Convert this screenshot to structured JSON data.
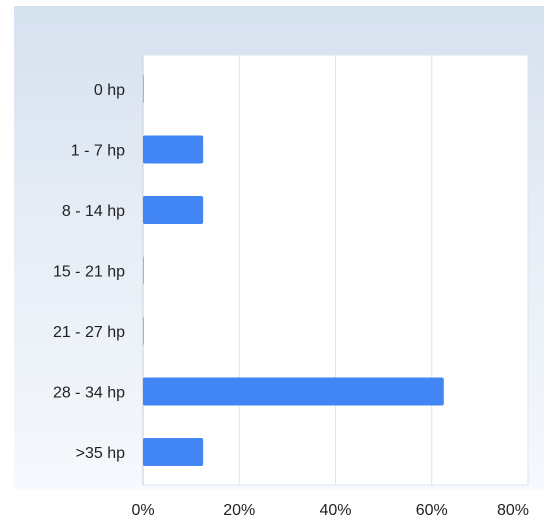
{
  "chart_data": {
    "type": "bar",
    "orientation": "horizontal",
    "categories": [
      "0 hp",
      "1 - 7 hp",
      "8 - 14 hp",
      "15 - 21 hp",
      "21 - 27 hp",
      "28 - 34 hp",
      ">35 hp"
    ],
    "series": [
      {
        "values": [
          0,
          12.5,
          12.5,
          0,
          0,
          62.5,
          12.5
        ]
      }
    ],
    "xlim": [
      0,
      80
    ],
    "xticks": [
      "0%",
      "20%",
      "40%",
      "60%",
      "80%"
    ],
    "grid": true,
    "legend": "none",
    "colors": {
      "bar": "#4285f4",
      "grid": "#dfe4ea",
      "axis": "#c8cdd3",
      "text": "#222222"
    }
  }
}
